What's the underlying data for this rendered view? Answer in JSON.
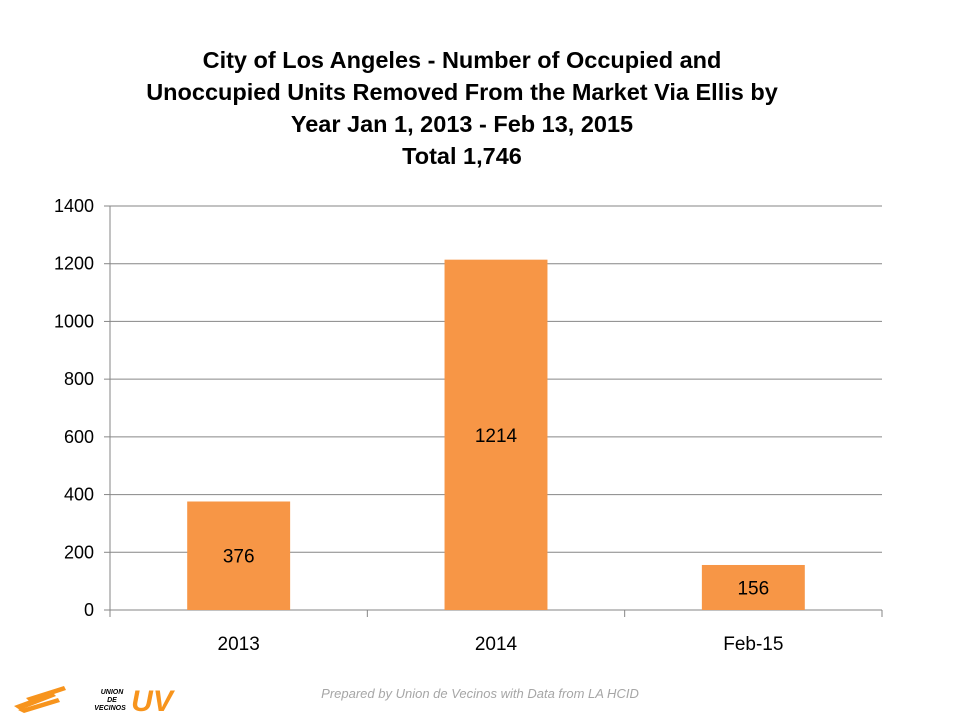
{
  "chart_data": {
    "type": "bar",
    "title_lines": [
      "City of Los Angeles - Number of Occupied and",
      "Unoccupied Units Removed From the Market Via Ellis by",
      "Year Jan 1, 2013 - Feb 13, 2015",
      "Total 1,746"
    ],
    "categories": [
      "2013",
      "2014",
      "Feb-15"
    ],
    "values": [
      376,
      1214,
      156
    ],
    "data_labels": [
      "376",
      "1214",
      "156"
    ],
    "ylim": [
      0,
      1400
    ],
    "yticks": [
      0,
      200,
      400,
      600,
      800,
      1000,
      1200,
      1400
    ],
    "grid": true,
    "legend": "none",
    "bar_color": "#f79646"
  },
  "footer": {
    "credit": "Prepared by Union de Vecinos with Data from LA HCID"
  },
  "logo": {
    "text_lines": [
      "UNION",
      "DE",
      "VECINOS"
    ],
    "monogram": "UV",
    "color": "#f7941d"
  }
}
